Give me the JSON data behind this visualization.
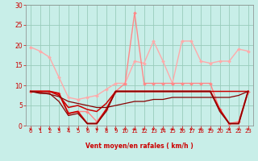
{
  "background_color": "#c8eee8",
  "grid_color": "#99ccbb",
  "xlabel": "Vent moyen/en rafales ( km/h )",
  "xlabel_color": "#cc0000",
  "tick_color": "#cc0000",
  "xlim": [
    -0.5,
    23.5
  ],
  "ylim": [
    0,
    30
  ],
  "yticks": [
    0,
    5,
    10,
    15,
    20,
    25,
    30
  ],
  "xticks": [
    0,
    1,
    2,
    3,
    4,
    5,
    6,
    7,
    8,
    9,
    10,
    11,
    12,
    13,
    14,
    15,
    16,
    17,
    18,
    19,
    20,
    21,
    22,
    23
  ],
  "series": [
    {
      "y": [
        19.5,
        18.5,
        17.0,
        12.0,
        7.0,
        6.5,
        7.0,
        7.5,
        9.0,
        10.5,
        10.5,
        16.0,
        15.5,
        21.0,
        16.0,
        10.5,
        21.0,
        21.0,
        16.0,
        15.5,
        16.0,
        16.0,
        19.0,
        18.5
      ],
      "color": "#ffaaaa",
      "lw": 1.0,
      "marker": "D",
      "ms": 2.0
    },
    {
      "y": [
        8.5,
        8.5,
        8.5,
        8.0,
        3.0,
        3.5,
        3.5,
        1.0,
        4.0,
        8.5,
        10.5,
        28.0,
        10.5,
        10.5,
        10.5,
        10.5,
        10.5,
        10.5,
        10.5,
        10.5,
        4.0,
        0.5,
        1.0,
        8.5
      ],
      "color": "#ff8888",
      "lw": 1.0,
      "marker": "D",
      "ms": 2.0
    },
    {
      "y": [
        8.5,
        8.5,
        8.5,
        8.0,
        3.0,
        3.5,
        0.5,
        0.5,
        4.0,
        8.5,
        8.5,
        8.5,
        8.5,
        8.5,
        8.5,
        8.5,
        8.5,
        8.5,
        8.5,
        8.5,
        4.0,
        0.5,
        0.5,
        8.5
      ],
      "color": "#cc0000",
      "lw": 1.4,
      "marker": null,
      "ms": 0
    },
    {
      "y": [
        8.5,
        8.5,
        8.5,
        7.5,
        4.5,
        5.0,
        4.0,
        3.5,
        5.5,
        8.5,
        8.5,
        8.5,
        8.5,
        8.5,
        8.5,
        8.5,
        8.5,
        8.5,
        8.5,
        8.5,
        8.5,
        8.5,
        8.5,
        8.5
      ],
      "color": "#cc0000",
      "lw": 1.1,
      "marker": null,
      "ms": 0
    },
    {
      "y": [
        8.5,
        8.2,
        7.8,
        7.2,
        6.0,
        5.5,
        5.0,
        4.5,
        4.5,
        5.0,
        5.5,
        6.0,
        6.0,
        6.5,
        6.5,
        7.0,
        7.0,
        7.0,
        7.0,
        7.0,
        7.0,
        7.0,
        7.5,
        8.5
      ],
      "color": "#880000",
      "lw": 0.9,
      "marker": null,
      "ms": 0
    },
    {
      "y": [
        8.5,
        8.0,
        8.0,
        6.0,
        2.5,
        3.0,
        0.5,
        0.5,
        3.5,
        8.5,
        8.5,
        8.5,
        8.5,
        8.5,
        8.5,
        8.5,
        8.5,
        8.5,
        8.5,
        8.5,
        3.5,
        0.5,
        0.5,
        8.5
      ],
      "color": "#880000",
      "lw": 0.9,
      "marker": null,
      "ms": 0
    }
  ],
  "arrow_color": "#cc0000",
  "fig_width": 3.2,
  "fig_height": 2.0,
  "dpi": 100
}
